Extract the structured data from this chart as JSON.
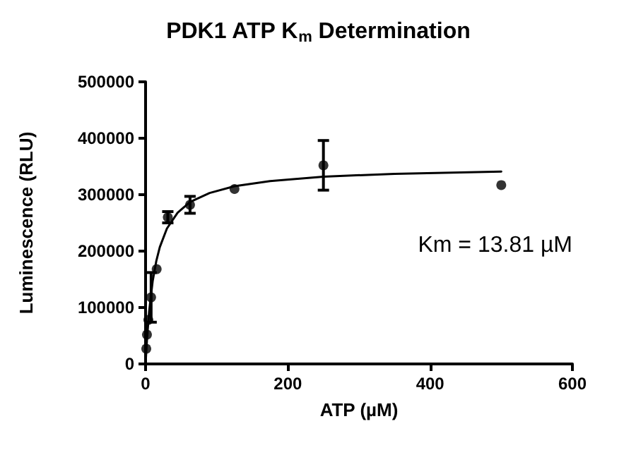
{
  "chart_data": {
    "type": "scatter",
    "title": "PDK1 ATP K$_{m}$ Determination",
    "xlabel": "ATP (µM)",
    "ylabel": "Luminescence (RLU)",
    "annotations": [
      "Km = 13.81 µM"
    ],
    "xlim": [
      0,
      600
    ],
    "xticks": [
      0,
      200,
      400,
      600
    ],
    "ylim": [
      0,
      500000
    ],
    "yticks": [
      0,
      100000,
      200000,
      300000,
      400000,
      500000
    ],
    "grid": false,
    "marker": "circle",
    "series": [
      {
        "color": "#000000",
        "x": [
          0.98,
          1.95,
          3.9,
          7.8,
          15.6,
          31.25,
          62.5,
          125,
          250,
          500
        ],
        "values": [
          27000,
          52000,
          78000,
          118000,
          168000,
          260000,
          282000,
          310000,
          352000,
          317000
        ],
        "errors": [
          null,
          null,
          null,
          44000,
          null,
          10000,
          15000,
          null,
          44000,
          null
        ]
      },
      {
        "type": "line",
        "color": "#000000",
        "line_style": "solid",
        "marker": "none",
        "x": [
          0,
          2,
          5,
          10,
          15,
          20,
          30,
          45,
          62.5,
          90,
          125,
          175,
          250,
          350,
          500
        ],
        "values": [
          0,
          44000,
          93000,
          147000,
          182000,
          207000,
          240000,
          268000,
          287000,
          303000,
          315000,
          324000,
          332000,
          337000,
          341000
        ]
      }
    ]
  }
}
